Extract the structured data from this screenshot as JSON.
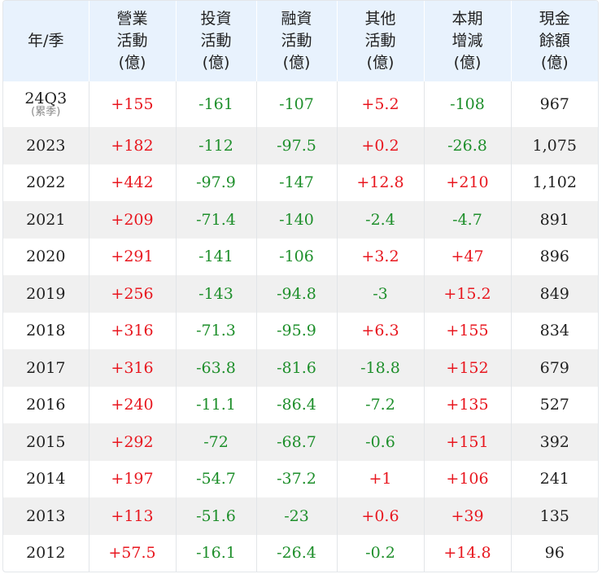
{
  "header": {
    "year": [
      "年/季"
    ],
    "operating": [
      "營業",
      "活動",
      "(億)"
    ],
    "investing": [
      "投資",
      "活動",
      "(億)"
    ],
    "financing": [
      "融資",
      "活動",
      "(億)"
    ],
    "other": [
      "其他",
      "活動",
      "(億)"
    ],
    "change": [
      "本期",
      "增減",
      "(億)"
    ],
    "cash": [
      "現金",
      "餘額",
      "(億)"
    ]
  },
  "rows": [
    {
      "year": "24Q3",
      "year_sub": "(累季)",
      "op": "+155",
      "inv": "-161",
      "fin": "-107",
      "oth": "+5.2",
      "chg": "-108",
      "cash": "967"
    },
    {
      "year": "2023",
      "op": "+182",
      "inv": "-112",
      "fin": "-97.5",
      "oth": "+0.2",
      "chg": "-26.8",
      "cash": "1,075"
    },
    {
      "year": "2022",
      "op": "+442",
      "inv": "-97.9",
      "fin": "-147",
      "oth": "+12.8",
      "chg": "+210",
      "cash": "1,102"
    },
    {
      "year": "2021",
      "op": "+209",
      "inv": "-71.4",
      "fin": "-140",
      "oth": "-2.4",
      "chg": "-4.7",
      "cash": "891"
    },
    {
      "year": "2020",
      "op": "+291",
      "inv": "-141",
      "fin": "-106",
      "oth": "+3.2",
      "chg": "+47",
      "cash": "896"
    },
    {
      "year": "2019",
      "op": "+256",
      "inv": "-143",
      "fin": "-94.8",
      "oth": "-3",
      "chg": "+15.2",
      "cash": "849"
    },
    {
      "year": "2018",
      "op": "+316",
      "inv": "-71.3",
      "fin": "-95.9",
      "oth": "+6.3",
      "chg": "+155",
      "cash": "834"
    },
    {
      "year": "2017",
      "op": "+316",
      "inv": "-63.8",
      "fin": "-81.6",
      "oth": "-18.8",
      "chg": "+152",
      "cash": "679"
    },
    {
      "year": "2016",
      "op": "+240",
      "inv": "-11.1",
      "fin": "-86.4",
      "oth": "-7.2",
      "chg": "+135",
      "cash": "527"
    },
    {
      "year": "2015",
      "op": "+292",
      "inv": "-72",
      "fin": "-68.7",
      "oth": "-0.6",
      "chg": "+151",
      "cash": "392"
    },
    {
      "year": "2014",
      "op": "+197",
      "inv": "-54.7",
      "fin": "-37.2",
      "oth": "+1",
      "chg": "+106",
      "cash": "241"
    },
    {
      "year": "2013",
      "op": "+113",
      "inv": "-51.6",
      "fin": "-23",
      "oth": "+0.6",
      "chg": "+39",
      "cash": "135"
    },
    {
      "year": "2012",
      "op": "+57.5",
      "inv": "-16.1",
      "fin": "-26.4",
      "oth": "-0.2",
      "chg": "+14.8",
      "cash": "96"
    }
  ],
  "colors": {
    "positive": "#e8171f",
    "negative": "#1e8f2b",
    "header_bg": "#e8f2fd",
    "alt_row_bg": "#f0f0f0"
  }
}
